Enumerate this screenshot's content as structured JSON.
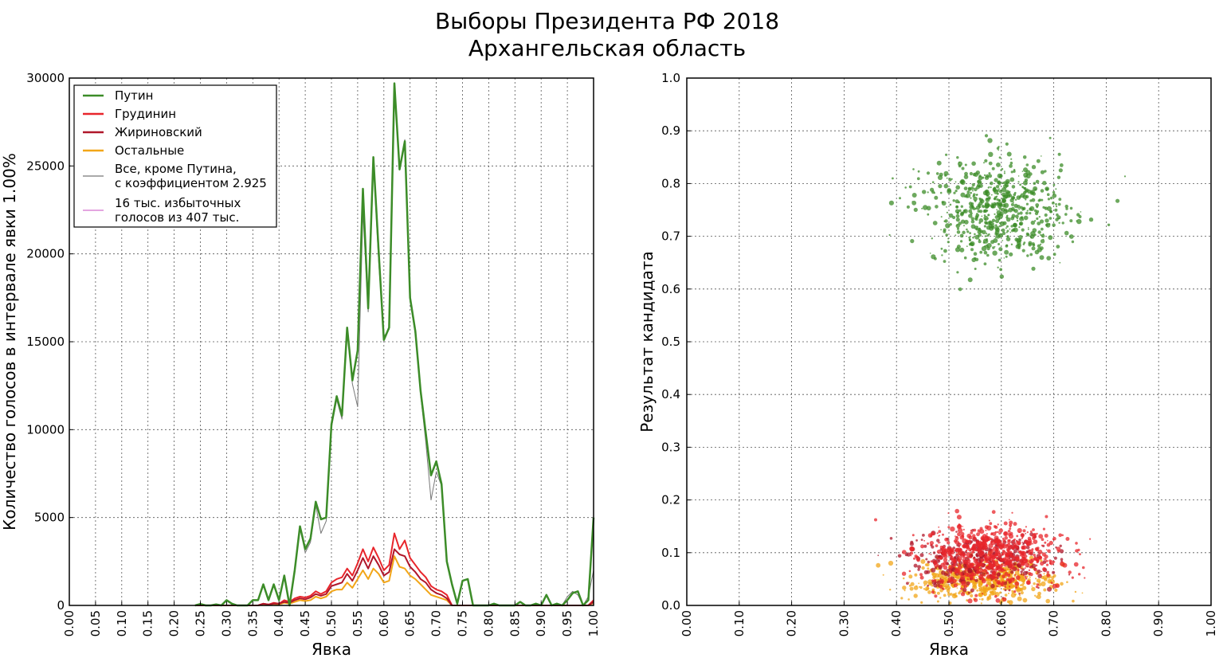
{
  "title": "Выборы Президента РФ 2018",
  "subtitle": "Архангельская область",
  "colors": {
    "putin": "#3c8c28",
    "grudinin": "#e8252b",
    "zhirinovsky": "#b0172a",
    "others": "#f2a618",
    "all_but_putin": "#777777",
    "excess": "#d36fcd"
  },
  "chart_data": [
    {
      "type": "line",
      "xlabel": "Явка",
      "ylabel": "Количество голосов в интервале явки 1.00%",
      "xlim": [
        0,
        1
      ],
      "ylim": [
        0,
        30000
      ],
      "x_ticks": [
        "0.00",
        "0.05",
        "0.10",
        "0.15",
        "0.20",
        "0.25",
        "0.30",
        "0.35",
        "0.40",
        "0.45",
        "0.50",
        "0.55",
        "0.60",
        "0.65",
        "0.70",
        "0.75",
        "0.80",
        "0.85",
        "0.90",
        "0.95",
        "1.00"
      ],
      "y_ticks": [
        "0",
        "5000",
        "10000",
        "15000",
        "20000",
        "25000",
        "30000"
      ],
      "grid": true,
      "legend_position": "top-left",
      "legend": [
        {
          "label": "Путин",
          "color_key": "putin"
        },
        {
          "label": "Грудинин",
          "color_key": "grudinin"
        },
        {
          "label": "Жириновский",
          "color_key": "zhirinovsky"
        },
        {
          "label": "Остальные",
          "color_key": "others"
        },
        {
          "label": "Все, кроме Путина,\nс коэффициентом 2.925",
          "color_key": "all_but_putin"
        },
        {
          "label": "16 тыс. избыточных\nголосов из 407 тыс.",
          "color_key": "excess"
        }
      ],
      "x": [
        0.24,
        0.25,
        0.26,
        0.27,
        0.28,
        0.29,
        0.3,
        0.31,
        0.32,
        0.33,
        0.34,
        0.35,
        0.36,
        0.37,
        0.38,
        0.39,
        0.4,
        0.41,
        0.42,
        0.43,
        0.44,
        0.45,
        0.46,
        0.47,
        0.48,
        0.49,
        0.5,
        0.51,
        0.52,
        0.53,
        0.54,
        0.55,
        0.56,
        0.57,
        0.58,
        0.59,
        0.6,
        0.61,
        0.62,
        0.63,
        0.64,
        0.65,
        0.66,
        0.67,
        0.68,
        0.69,
        0.7,
        0.71,
        0.72,
        0.73,
        0.74,
        0.75,
        0.76,
        0.77,
        0.78,
        0.79,
        0.8,
        0.81,
        0.82,
        0.83,
        0.84,
        0.85,
        0.86,
        0.87,
        0.88,
        0.89,
        0.9,
        0.91,
        0.92,
        0.93,
        0.94,
        0.95,
        0.96,
        0.97,
        0.98,
        0.99,
        1.0
      ],
      "series": [
        {
          "name": "Путин",
          "color_key": "putin",
          "width": 2.5,
          "values": [
            0,
            80,
            0,
            0,
            60,
            0,
            300,
            100,
            0,
            0,
            0,
            300,
            300,
            1200,
            300,
            1200,
            300,
            1700,
            0,
            2000,
            4500,
            3200,
            3800,
            5900,
            4900,
            5000,
            10300,
            11900,
            10800,
            15800,
            12800,
            14500,
            23700,
            16900,
            25500,
            20200,
            15100,
            15800,
            29700,
            24800,
            26400,
            17500,
            15600,
            12200,
            9800,
            7400,
            8200,
            6900,
            2500,
            1200,
            100,
            1400,
            1500,
            0,
            0,
            0,
            0,
            100,
            0,
            0,
            0,
            0,
            200,
            0,
            0,
            100,
            0,
            600,
            0,
            100,
            0,
            300,
            700,
            800,
            0,
            300,
            5000
          ]
        },
        {
          "name": "Все, кроме Путина, с коэффициентом 2.925",
          "color_key": "all_but_putin",
          "width": 1,
          "values": [
            0,
            80,
            0,
            0,
            60,
            0,
            300,
            100,
            0,
            0,
            0,
            300,
            300,
            1100,
            300,
            1100,
            300,
            1600,
            0,
            1900,
            4400,
            3000,
            3600,
            5700,
            4100,
            4800,
            10100,
            11700,
            10600,
            15600,
            12600,
            11300,
            22400,
            16700,
            25200,
            19600,
            15300,
            15700,
            29500,
            24900,
            26500,
            17300,
            15400,
            12000,
            9300,
            6000,
            7600,
            6800,
            2500,
            1200,
            100,
            1400,
            1500,
            0,
            0,
            0,
            0,
            100,
            0,
            0,
            0,
            0,
            200,
            0,
            0,
            100,
            0,
            600,
            0,
            100,
            0,
            500,
            800,
            600,
            0,
            500,
            2000
          ]
        },
        {
          "name": "Грудинин",
          "color_key": "grudinin",
          "width": 2,
          "values": [
            0,
            0,
            0,
            0,
            0,
            0,
            0,
            0,
            0,
            0,
            0,
            0,
            0,
            100,
            50,
            150,
            100,
            300,
            200,
            400,
            500,
            450,
            550,
            800,
            650,
            800,
            1300,
            1500,
            1600,
            2100,
            1700,
            2400,
            3200,
            2500,
            3300,
            2700,
            2000,
            2300,
            4100,
            3200,
            3700,
            2700,
            2300,
            1900,
            1600,
            1100,
            900,
            800,
            600,
            0,
            0,
            0,
            0,
            0,
            0,
            0,
            0,
            0,
            0,
            0,
            0,
            0,
            0,
            0,
            0,
            0,
            0,
            0,
            0,
            0,
            0,
            0,
            0,
            0,
            0,
            0,
            300
          ]
        },
        {
          "name": "Жириновский",
          "color_key": "zhirinovsky",
          "width": 2,
          "values": [
            0,
            0,
            0,
            0,
            0,
            0,
            0,
            0,
            0,
            0,
            0,
            0,
            0,
            100,
            50,
            100,
            100,
            200,
            150,
            300,
            400,
            350,
            450,
            650,
            550,
            650,
            1100,
            1200,
            1300,
            1800,
            1400,
            2000,
            2700,
            2100,
            2800,
            2300,
            1700,
            1900,
            3200,
            2900,
            2800,
            2200,
            1900,
            1500,
            1300,
            900,
            700,
            600,
            400,
            0,
            0,
            0,
            0,
            0,
            0,
            0,
            0,
            0,
            0,
            0,
            0,
            0,
            0,
            0,
            0,
            0,
            0,
            0,
            0,
            0,
            0,
            0,
            0,
            0,
            0,
            0,
            200
          ]
        },
        {
          "name": "Остальные",
          "color_key": "others",
          "width": 2,
          "values": [
            0,
            0,
            0,
            0,
            0,
            0,
            0,
            0,
            0,
            0,
            0,
            0,
            0,
            50,
            30,
            80,
            60,
            150,
            100,
            200,
            300,
            250,
            300,
            500,
            400,
            500,
            800,
            900,
            900,
            1300,
            1000,
            1500,
            2000,
            1500,
            2100,
            1800,
            1300,
            1400,
            2800,
            2200,
            2100,
            1700,
            1500,
            1200,
            900,
            600,
            500,
            400,
            300,
            0,
            0,
            0,
            0,
            0,
            0,
            0,
            0,
            0,
            0,
            0,
            0,
            0,
            0,
            0,
            0,
            0,
            0,
            0,
            0,
            0,
            0,
            0,
            0,
            0,
            0,
            0,
            150
          ]
        }
      ]
    },
    {
      "type": "scatter",
      "xlabel": "Явка",
      "ylabel": "Результат кандидата",
      "xlim": [
        0,
        1
      ],
      "ylim": [
        0,
        1
      ],
      "x_ticks": [
        "0.00",
        "0.10",
        "0.20",
        "0.30",
        "0.40",
        "0.50",
        "0.60",
        "0.70",
        "0.80",
        "0.90",
        "1.00"
      ],
      "y_ticks": [
        "0.0",
        "0.1",
        "0.2",
        "0.3",
        "0.4",
        "0.5",
        "0.6",
        "0.7",
        "0.8",
        "0.9",
        "1.0"
      ],
      "grid": true,
      "series": [
        {
          "name": "Путин",
          "color_key": "putin",
          "center": [
            0.59,
            0.75
          ],
          "spread": [
            0.065,
            0.05
          ],
          "count": 650
        },
        {
          "name": "Грудинин",
          "color_key": "grudinin",
          "center": [
            0.58,
            0.095
          ],
          "spread": [
            0.065,
            0.032
          ],
          "count": 650
        },
        {
          "name": "Жириновский",
          "color_key": "zhirinovsky",
          "center": [
            0.56,
            0.085
          ],
          "spread": [
            0.065,
            0.025
          ],
          "count": 350
        },
        {
          "name": "Остальные",
          "color_key": "others",
          "center": [
            0.56,
            0.048
          ],
          "spread": [
            0.065,
            0.02
          ],
          "count": 550
        }
      ]
    }
  ]
}
